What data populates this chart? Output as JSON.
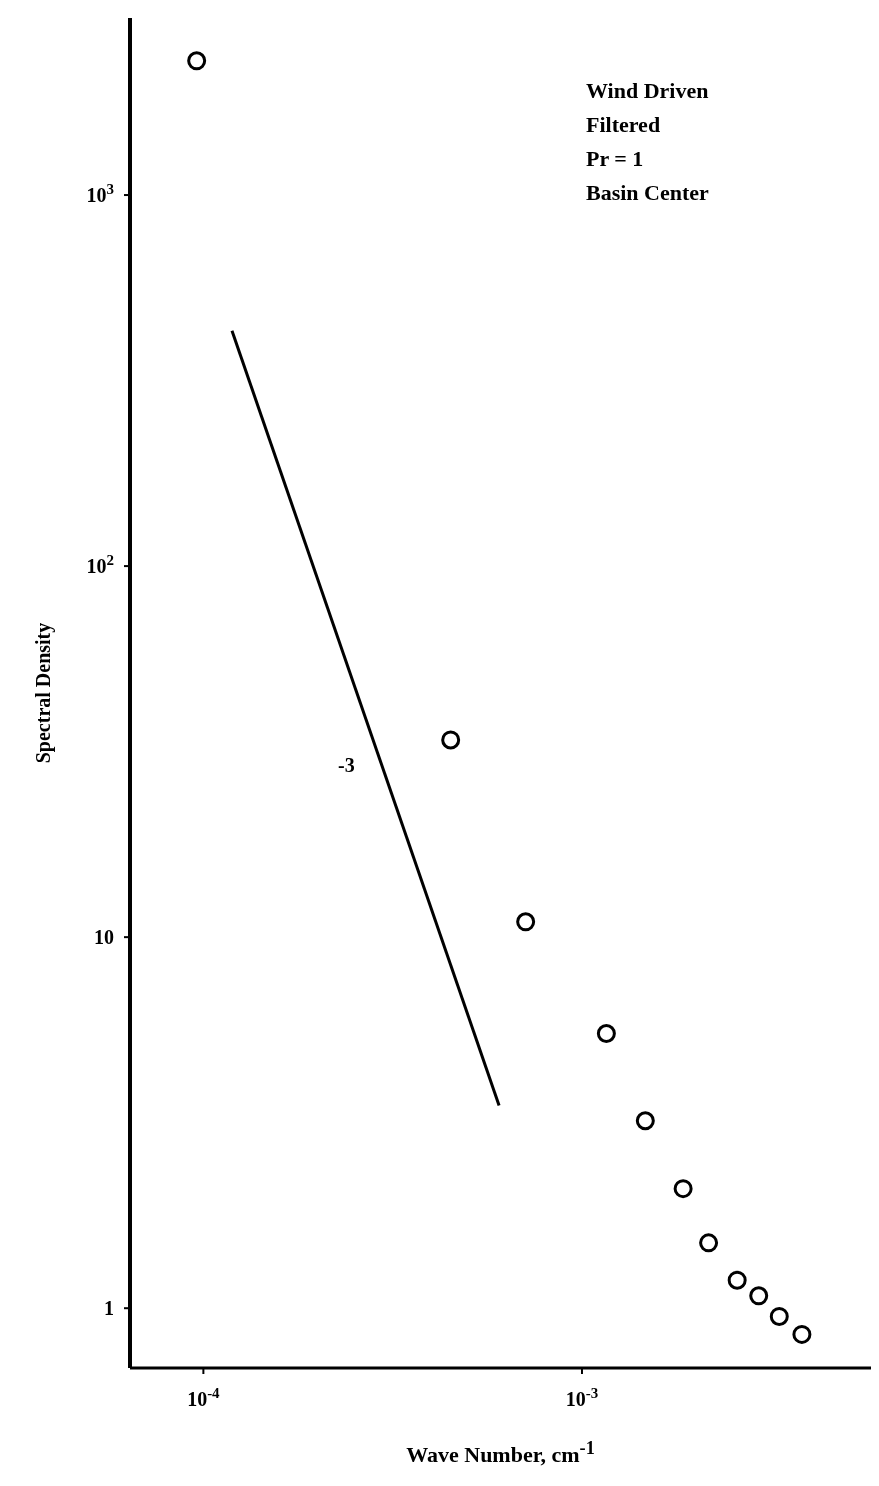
{
  "chart_data": {
    "type": "scatter",
    "xlabel": "Wave Number, cm$^{-1}$",
    "ylabel": "Spectral Density",
    "log": "xy",
    "marker": "circle",
    "xlim": [
      6.4e-05,
      0.0058
    ],
    "ylim": [
      0.69,
      3000
    ],
    "xticks": [
      {
        "value": 0.0001,
        "label": "10$^{-4}$"
      },
      {
        "value": 0.001,
        "label": "10$^{-3}$"
      }
    ],
    "yticks": [
      1,
      10,
      {
        "value": 100,
        "label": "10$^{2}$"
      },
      {
        "value": 1000,
        "label": "10$^{3}$"
      }
    ],
    "series": [
      {
        "color": "#000000",
        "x": [
          9.6e-05,
          0.00045,
          0.00071,
          0.00116,
          0.00147,
          0.00185,
          0.00216,
          0.00257,
          0.00293,
          0.00332,
          0.00381
        ],
        "values": [
          2300,
          34,
          11,
          5.5,
          3.2,
          2.1,
          1.5,
          1.19,
          1.08,
          0.95,
          0.85
        ]
      },
      {
        "type": "line",
        "color": "#000000",
        "marker": "none",
        "x": [
          0.000119,
          0.000604
        ],
        "values": [
          431,
          3.52
        ]
      }
    ],
    "annotations": [
      "-3",
      "Wind Driven",
      "Filtered",
      "Pr = 1",
      "Basin Center"
    ]
  }
}
